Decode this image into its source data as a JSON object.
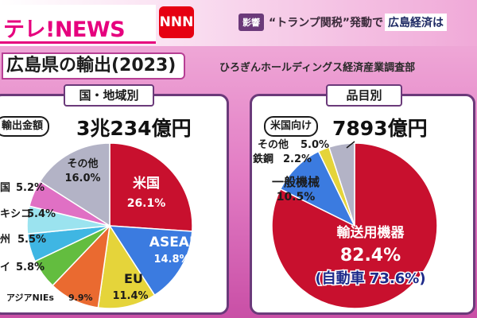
{
  "header": {
    "logo_text": "テレ!NEWS",
    "network_badge": "NNN",
    "tag": "影響",
    "headline_prefix": "“トランプ関税”発動で",
    "headline_highlight": "広島経済は"
  },
  "main_title": "広島県の輸出(2023)",
  "source": "ひろぎんホールディングス経済産業調査部",
  "colors": {
    "panel_border": "#6b3a7a",
    "us": "#c8102e",
    "asean": "#3b7be0",
    "eu": "#e5d43a",
    "asia_nies": "#ea6a30",
    "thailand": "#63bd3f",
    "europe": "#3fb6e3",
    "mexico": "#9be3ef",
    "china": "#e070c4",
    "other": "#b3b3c6",
    "transport": "#c8102e",
    "machinery": "#3b7be0",
    "steel": "#e5d43a",
    "product_other": "#b3b3c6"
  },
  "chart_data": [
    {
      "type": "pie",
      "title": "国・地域別",
      "total_label": "輸出金額",
      "total_value": "3兆234億円",
      "slices": [
        {
          "label": "米国",
          "value": 26.1,
          "value_text": "26.1%",
          "color_key": "us"
        },
        {
          "label": "ASEAN",
          "value": 14.8,
          "value_text": "14.8%",
          "color_key": "asean"
        },
        {
          "label": "EU",
          "value": 11.4,
          "value_text": "11.4%",
          "color_key": "eu"
        },
        {
          "label": "アジアNIEs",
          "value": 9.9,
          "value_text": "9.9%",
          "color_key": "asia_nies"
        },
        {
          "label": "イ",
          "value": 5.8,
          "value_text": "5.8%",
          "color_key": "thailand"
        },
        {
          "label": "州",
          "value": 5.5,
          "value_text": "5.5%",
          "color_key": "europe"
        },
        {
          "label": "キシコ",
          "value": 5.4,
          "value_text": "5.4%",
          "color_key": "mexico"
        },
        {
          "label": "国",
          "value": 5.2,
          "value_text": "5.2%",
          "color_key": "china"
        },
        {
          "label": "その他",
          "value": 16.0,
          "value_text": "16.0%",
          "color_key": "other"
        }
      ]
    },
    {
      "type": "pie",
      "title": "品目別",
      "total_label": "米国向け",
      "total_value": "7893億円",
      "slices": [
        {
          "label": "輸送用機器",
          "value": 82.4,
          "value_text": "82.4%",
          "sub_label": "(自動車 73.6%)",
          "color_key": "transport"
        },
        {
          "label": "一般機械",
          "value": 10.5,
          "value_text": "10.5%",
          "color_key": "machinery"
        },
        {
          "label": "鉄鋼",
          "value": 2.2,
          "value_text": "2.2%",
          "color_key": "steel"
        },
        {
          "label": "その他",
          "value": 5.0,
          "value_text": "5.0%",
          "color_key": "product_other"
        }
      ]
    }
  ]
}
